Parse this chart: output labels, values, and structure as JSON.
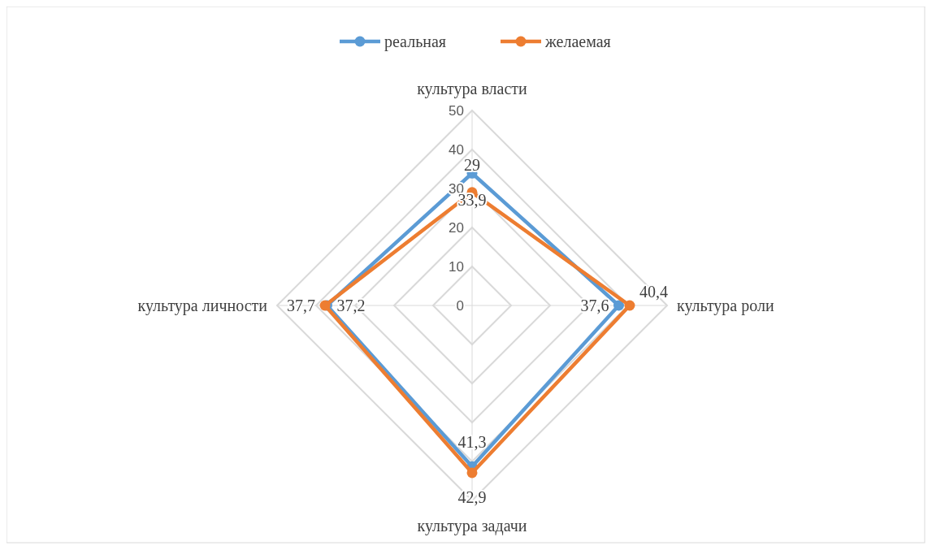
{
  "chart_data": {
    "type": "radar",
    "categories": [
      "культура власти",
      "культура роли",
      "культура задачи",
      "культура личности"
    ],
    "series": [
      {
        "name": "реальная",
        "color": "#5b9bd5",
        "values": [
          33.9,
          37.6,
          41.3,
          37.2
        ],
        "value_labels": [
          "33,9",
          "37,6",
          "41,3",
          "37,2"
        ]
      },
      {
        "name": "желаемая",
        "color": "#ed7d31",
        "values": [
          29,
          40.4,
          42.9,
          37.7
        ],
        "value_labels": [
          "29",
          "40,4",
          "42,9",
          "37,7"
        ]
      }
    ],
    "ylim": [
      0,
      50
    ],
    "yticks": [
      0,
      10,
      20,
      30,
      40,
      50
    ],
    "grid": true,
    "legend": "top",
    "marker": "circle"
  }
}
